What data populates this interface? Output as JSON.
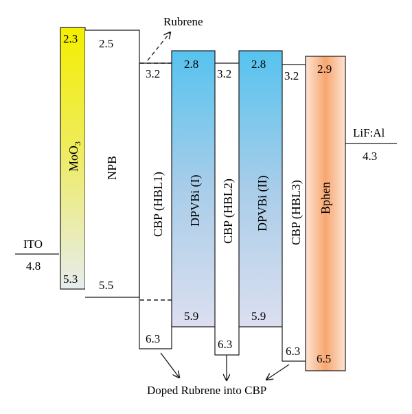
{
  "diagram": {
    "electrodes": {
      "anode": {
        "name": "ITO",
        "work_function": "4.8"
      },
      "cathode": {
        "name": "LiF:Al",
        "work_function": "4.3"
      }
    },
    "layers": [
      {
        "id": "moo3",
        "name_main": "MoO",
        "name_sub": "3",
        "lumo": "2.3",
        "homo": "5.3",
        "fill": "yellow-gradient"
      },
      {
        "id": "npb",
        "name": "NPB",
        "lumo": "2.5",
        "homo": "5.5",
        "fill": "#ffffff"
      },
      {
        "id": "cbp1",
        "name": "CBP (HBL1)",
        "lumo": "3.2",
        "homo": "6.3",
        "fill": "#ffffff"
      },
      {
        "id": "dpvbi1",
        "name": "DPVBi (I)",
        "lumo": "2.8",
        "homo": "5.9",
        "fill": "blue-gradient"
      },
      {
        "id": "cbp2",
        "name": "CBP (HBL2)",
        "lumo": "3.2",
        "homo": "6.3",
        "fill": "#ffffff"
      },
      {
        "id": "dpvbi2",
        "name": "DPVBi (II)",
        "lumo": "2.8",
        "homo": "5.9",
        "fill": "blue-gradient"
      },
      {
        "id": "cbp3",
        "name": "CBP (HBL3)",
        "lumo": "3.2",
        "homo": "6.3",
        "fill": "#ffffff"
      },
      {
        "id": "bphen",
        "name": "Bphen",
        "lumo": "2.9",
        "homo": "6.5",
        "fill": "orange-gradient"
      }
    ],
    "annotations": {
      "rubrene": "Rubrene",
      "doped": "Doped Rubrene into CBP"
    }
  }
}
